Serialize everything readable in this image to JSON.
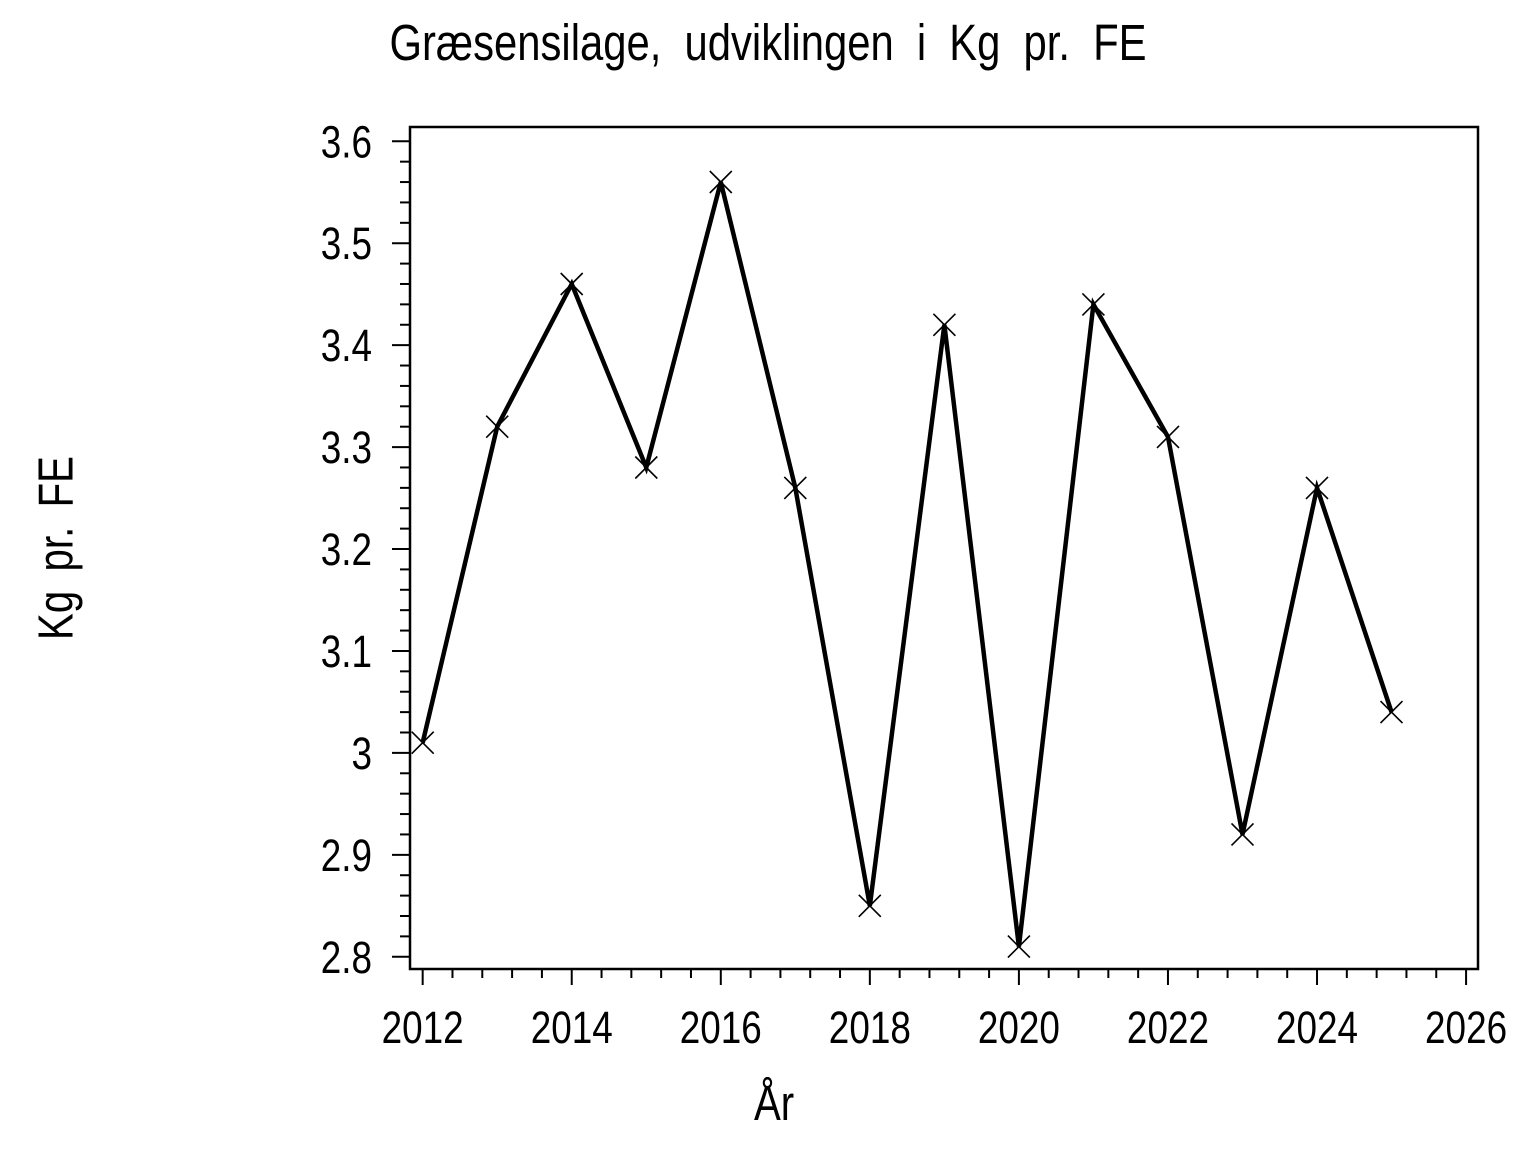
{
  "colors": {
    "background": "#ffffff",
    "line": "#000000",
    "text": "#000000",
    "axis": "#000000"
  },
  "chart_data": {
    "type": "line",
    "title": "Græsensilage, udviklingen i Kg pr. FE",
    "xlabel": "År",
    "ylabel": "Kg pr. FE",
    "series": [
      {
        "name": "Kg pr. FE",
        "x": [
          2012,
          2013,
          2014,
          2015,
          2016,
          2017,
          2018,
          2019,
          2020,
          2021,
          2022,
          2023,
          2024,
          2025
        ],
        "values": [
          3.01,
          3.32,
          3.46,
          3.28,
          3.56,
          3.26,
          2.85,
          3.42,
          2.81,
          3.44,
          3.31,
          2.92,
          3.26,
          3.04
        ]
      }
    ],
    "marker": "x",
    "grid": false,
    "legend": null,
    "xlim": [
      2011.83,
      2026.16
    ],
    "ylim": [
      2.788,
      3.614
    ],
    "xticks": {
      "values": [
        2012,
        2014,
        2016,
        2018,
        2020,
        2022,
        2024,
        2026
      ],
      "labels": [
        "2012",
        "2014",
        "2016",
        "2018",
        "2020",
        "2022",
        "2024",
        "2026"
      ],
      "minor_step": 0.4
    },
    "yticks": {
      "values": [
        2.8,
        2.9,
        3.0,
        3.1,
        3.2,
        3.3,
        3.4,
        3.5,
        3.6
      ],
      "labels": [
        "2.8",
        "2.9",
        "3",
        "3.1",
        "3.2",
        "3.3",
        "3.4",
        "3.5",
        "3.6"
      ],
      "minor_step": 0.02
    }
  }
}
